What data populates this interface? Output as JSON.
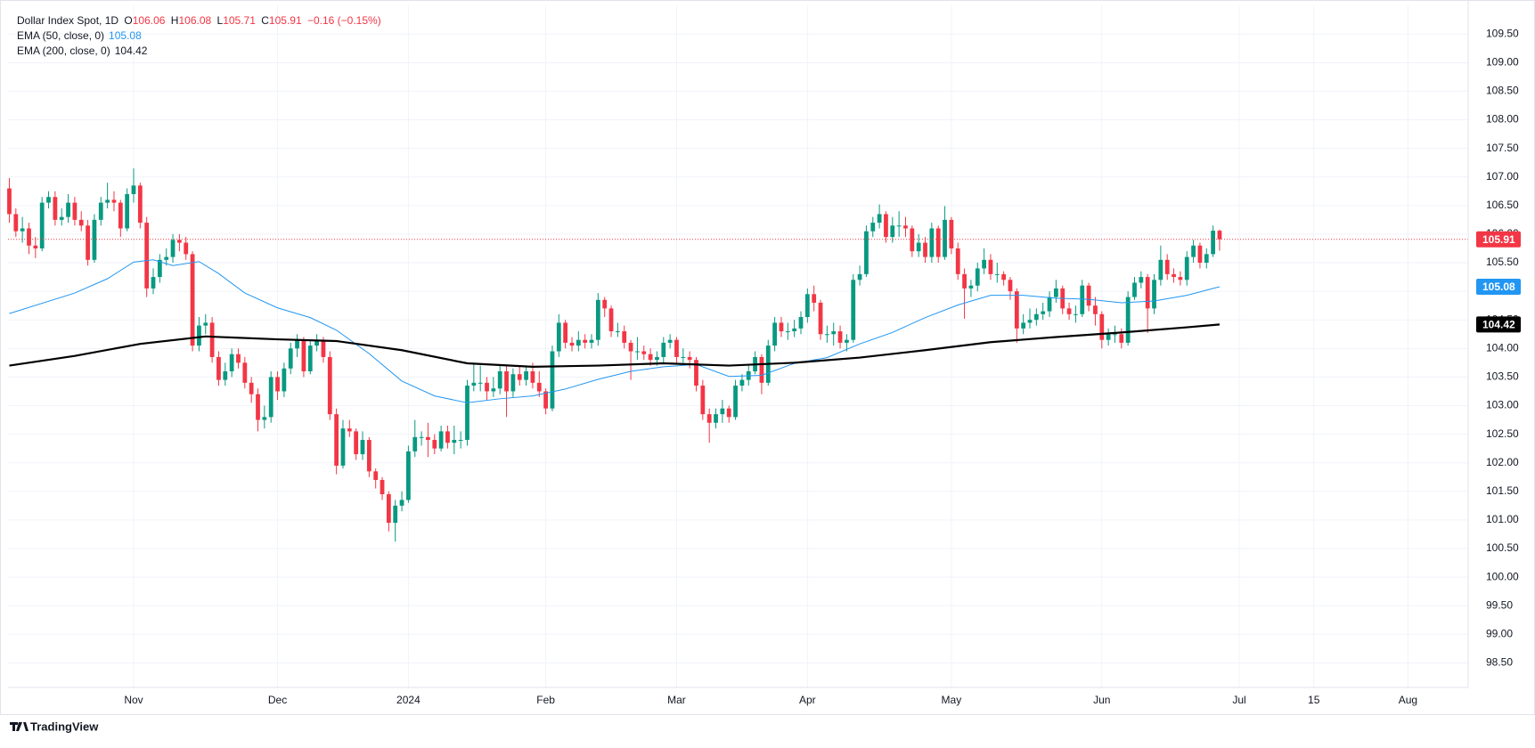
{
  "chart_data": {
    "type": "candlestick",
    "header": {
      "symbol": "Dollar Index Spot, 1D",
      "ohlc_labels": [
        "O",
        "H",
        "L",
        "C"
      ],
      "change": "−0.16 (−0.15%)"
    },
    "footer": "TradingView",
    "up_color": "#089981",
    "down_color": "#f23645",
    "xlim": [
      -0.2,
      223
    ],
    "ylim": [
      98.07,
      110.01
    ],
    "xticks": [
      {
        "value": 19,
        "label": "Nov"
      },
      {
        "value": 41,
        "label": "Dec"
      },
      {
        "value": 61,
        "label": "2024"
      },
      {
        "value": 82,
        "label": "Feb"
      },
      {
        "value": 102,
        "label": "Mar"
      },
      {
        "value": 122,
        "label": "Apr"
      },
      {
        "value": 144,
        "label": "May"
      },
      {
        "value": 167,
        "label": "Jun"
      },
      {
        "value": 188,
        "label": "Jul"
      },
      {
        "value": 199.4,
        "label": "15"
      },
      {
        "value": 213.8,
        "label": "Aug"
      }
    ],
    "yticks": [
      {
        "value": 98.5,
        "label": "98.50"
      },
      {
        "value": 99,
        "label": "99.00"
      },
      {
        "value": 99.5,
        "label": "99.50"
      },
      {
        "value": 100,
        "label": "100.00"
      },
      {
        "value": 100.5,
        "label": "100.50"
      },
      {
        "value": 101,
        "label": "101.00"
      },
      {
        "value": 101.5,
        "label": "101.50"
      },
      {
        "value": 102,
        "label": "102.00"
      },
      {
        "value": 102.5,
        "label": "102.50"
      },
      {
        "value": 103,
        "label": "103.00"
      },
      {
        "value": 103.5,
        "label": "103.50"
      },
      {
        "value": 104,
        "label": "104.00"
      },
      {
        "value": 104.5,
        "label": "104.50"
      },
      {
        "value": 105,
        "label": "105.00"
      },
      {
        "value": 105.5,
        "label": "105.50"
      },
      {
        "value": 106,
        "label": "106.00"
      },
      {
        "value": 106.5,
        "label": "106.50"
      },
      {
        "value": 107,
        "label": "107.00"
      },
      {
        "value": 107.5,
        "label": "107.50"
      },
      {
        "value": 108,
        "label": "108.00"
      },
      {
        "value": 108.5,
        "label": "108.50"
      },
      {
        "value": 109,
        "label": "109.00"
      },
      {
        "value": 109.5,
        "label": "109.50"
      }
    ],
    "grid": true,
    "candles": {
      "open": [
        106.8,
        106.35,
        106.05,
        106.1,
        105.8,
        105.75,
        106.55,
        106.65,
        106.25,
        106.3,
        106.55,
        106.25,
        106.15,
        105.55,
        106.25,
        106.55,
        106.6,
        106.55,
        106.1,
        106.7,
        106.85,
        106.2,
        105.05,
        105.25,
        105.55,
        105.6,
        105.9,
        105.85,
        105.65,
        104.05,
        104.4,
        104.45,
        103.85,
        103.45,
        103.6,
        103.9,
        103.75,
        103.4,
        103.2,
        102.75,
        102.8,
        103.5,
        103.25,
        103.65,
        104.0,
        104.15,
        103.6,
        104.05,
        104.15,
        103.85,
        102.85,
        101.95,
        102.6,
        102.55,
        102.15,
        102.4,
        101.85,
        101.7,
        101.45,
        100.95,
        101.25,
        101.35,
        102.2,
        102.45,
        102.45,
        102.4,
        102.25,
        102.55,
        102.35,
        102.4,
        102.4,
        103.35,
        103.4,
        103.4,
        103.25,
        103.3,
        103.6,
        103.25,
        103.55,
        103.45,
        103.6,
        103.4,
        103.25,
        102.95,
        103.95,
        104.45,
        104.1,
        104.05,
        104.15,
        104.1,
        104.15,
        104.85,
        104.7,
        104.3,
        104.3,
        104.1,
        103.95,
        103.95,
        103.9,
        103.8,
        103.85,
        104.1,
        104.15,
        103.85,
        103.85,
        103.8,
        103.35,
        102.85,
        102.7,
        102.85,
        102.95,
        102.8,
        103.35,
        103.45,
        103.6,
        103.85,
        103.4,
        104.05,
        104.45,
        104.3,
        104.3,
        104.35,
        104.55,
        104.95,
        104.8,
        104.25,
        104.25,
        104.3,
        104.1,
        104.15,
        105.2,
        105.3,
        106.05,
        106.2,
        106.35,
        105.95,
        106.15,
        106.15,
        106.1,
        105.7,
        105.85,
        105.6,
        106.1,
        105.6,
        106.25,
        105.75,
        105.3,
        105.05,
        105.1,
        105.4,
        105.55,
        105.3,
        105.3,
        105.2,
        105.0,
        104.35,
        104.45,
        104.5,
        104.6,
        104.65,
        104.9,
        105.05,
        104.7,
        104.6,
        104.6,
        105.1,
        104.75,
        104.6,
        104.15,
        104.25,
        104.25,
        104.1,
        104.9,
        105.15,
        105.25,
        104.7,
        105.2,
        105.55,
        105.3,
        105.25,
        105.2,
        105.6,
        105.8,
        105.5,
        105.65,
        106.06
      ],
      "high": [
        106.98,
        106.45,
        106.3,
        106.2,
        105.95,
        106.65,
        106.75,
        106.75,
        106.45,
        106.7,
        106.65,
        106.4,
        106.25,
        106.35,
        106.65,
        106.9,
        106.75,
        106.6,
        106.8,
        107.15,
        106.9,
        106.3,
        105.4,
        105.65,
        105.75,
        106.0,
        106.0,
        105.95,
        105.7,
        104.55,
        104.6,
        104.55,
        103.95,
        103.75,
        104.0,
        104.0,
        103.85,
        103.5,
        103.3,
        103.0,
        103.6,
        103.6,
        103.75,
        104.1,
        104.25,
        104.2,
        104.15,
        104.25,
        104.2,
        103.95,
        102.95,
        102.75,
        102.75,
        102.6,
        102.55,
        102.45,
        101.9,
        101.75,
        101.5,
        101.35,
        101.5,
        102.3,
        102.75,
        102.55,
        102.7,
        102.5,
        102.65,
        102.65,
        102.65,
        102.55,
        103.45,
        103.75,
        103.7,
        103.5,
        103.5,
        103.7,
        103.7,
        103.65,
        103.7,
        103.7,
        103.75,
        103.6,
        103.3,
        104.05,
        104.6,
        104.5,
        104.2,
        104.3,
        104.25,
        104.25,
        104.97,
        104.9,
        104.75,
        104.45,
        104.4,
        104.15,
        104.2,
        104.05,
        104.0,
        103.95,
        104.2,
        104.25,
        104.2,
        104.0,
        103.95,
        103.85,
        103.45,
        102.95,
        102.95,
        103.1,
        103.0,
        103.45,
        103.55,
        103.7,
        103.95,
        103.9,
        104.15,
        104.55,
        104.55,
        104.45,
        104.5,
        104.65,
        105.05,
        105.1,
        104.85,
        104.4,
        104.45,
        104.4,
        104.25,
        105.3,
        105.45,
        106.15,
        106.3,
        106.52,
        106.4,
        106.3,
        106.4,
        106.3,
        106.15,
        106.0,
        105.95,
        106.2,
        106.15,
        106.49,
        106.3,
        105.85,
        105.4,
        105.2,
        105.5,
        105.75,
        105.65,
        105.5,
        105.35,
        105.25,
        105.05,
        104.6,
        104.7,
        104.7,
        104.8,
        105.0,
        105.2,
        105.1,
        104.8,
        104.75,
        105.2,
        105.15,
        104.9,
        104.65,
        104.35,
        104.4,
        104.35,
        105.0,
        105.25,
        105.35,
        105.3,
        105.3,
        105.8,
        105.65,
        105.4,
        105.35,
        105.7,
        105.9,
        105.85,
        105.75,
        106.15,
        106.08
      ],
      "low": [
        106.2,
        105.95,
        105.85,
        105.65,
        105.58,
        105.7,
        106.45,
        106.15,
        106.15,
        106.2,
        106.15,
        106.05,
        105.45,
        105.5,
        106.15,
        106.45,
        106.4,
        105.95,
        106.05,
        106.55,
        106.1,
        104.9,
        104.95,
        105.15,
        105.45,
        105.5,
        105.7,
        105.55,
        103.95,
        103.95,
        104.25,
        103.75,
        103.35,
        103.35,
        103.5,
        103.65,
        103.3,
        103.05,
        102.55,
        102.6,
        102.7,
        103.1,
        103.15,
        103.55,
        103.85,
        103.5,
        103.55,
        103.95,
        103.75,
        102.75,
        101.8,
        101.9,
        102.45,
        102.05,
        102.05,
        101.75,
        101.55,
        101.35,
        100.8,
        100.62,
        101.15,
        101.3,
        102.1,
        102.3,
        102.1,
        102.15,
        102.2,
        102.25,
        102.15,
        102.25,
        102.3,
        103.25,
        103.25,
        103.1,
        103.15,
        103.2,
        102.8,
        103.15,
        103.35,
        103.35,
        103.3,
        103.15,
        102.85,
        102.9,
        103.85,
        104.0,
        103.95,
        103.95,
        104.0,
        104.0,
        104.05,
        104.55,
        104.2,
        104.2,
        104.0,
        103.45,
        103.8,
        103.8,
        103.7,
        103.7,
        103.75,
        104.0,
        103.75,
        103.75,
        103.65,
        103.25,
        102.75,
        102.35,
        102.6,
        102.7,
        102.7,
        102.75,
        103.25,
        103.35,
        103.55,
        103.2,
        103.35,
        103.95,
        104.2,
        104.15,
        104.2,
        104.25,
        104.45,
        104.65,
        104.15,
        104.1,
        104.05,
        104.0,
        103.95,
        104.1,
        105.1,
        105.25,
        105.95,
        106.1,
        105.85,
        105.85,
        105.95,
        105.95,
        105.6,
        105.6,
        105.5,
        105.5,
        105.5,
        105.55,
        105.65,
        105.2,
        104.52,
        104.9,
        105.0,
        105.3,
        105.2,
        105.15,
        105.1,
        104.85,
        104.1,
        104.25,
        104.35,
        104.4,
        104.5,
        104.55,
        104.8,
        104.6,
        104.5,
        104.45,
        104.55,
        104.65,
        104.4,
        104.0,
        104.05,
        104.1,
        104.0,
        104.05,
        104.85,
        105.05,
        104.27,
        104.6,
        105.1,
        105.2,
        105.15,
        105.1,
        105.1,
        105.5,
        105.4,
        105.4,
        105.6,
        105.71
      ],
      "close": [
        106.35,
        106.05,
        106.1,
        105.8,
        105.75,
        106.55,
        106.65,
        106.25,
        106.3,
        106.55,
        106.25,
        106.15,
        105.55,
        106.25,
        106.55,
        106.6,
        106.55,
        106.1,
        106.7,
        106.85,
        106.2,
        105.05,
        105.25,
        105.55,
        105.6,
        105.9,
        105.85,
        105.65,
        104.05,
        104.4,
        104.45,
        103.85,
        103.45,
        103.6,
        103.9,
        103.75,
        103.4,
        103.2,
        102.75,
        102.8,
        103.5,
        103.25,
        103.65,
        104.0,
        104.15,
        103.6,
        104.05,
        104.15,
        103.85,
        102.85,
        101.95,
        102.6,
        102.55,
        102.15,
        102.4,
        101.85,
        101.7,
        101.45,
        100.95,
        101.25,
        101.35,
        102.2,
        102.45,
        102.45,
        102.4,
        102.25,
        102.55,
        102.35,
        102.4,
        102.4,
        103.35,
        103.4,
        103.4,
        103.25,
        103.3,
        103.6,
        103.25,
        103.55,
        103.45,
        103.6,
        103.4,
        103.25,
        102.95,
        103.95,
        104.45,
        104.1,
        104.05,
        104.15,
        104.1,
        104.15,
        104.85,
        104.7,
        104.3,
        104.3,
        104.1,
        103.95,
        103.95,
        103.9,
        103.8,
        103.85,
        104.1,
        104.15,
        103.85,
        103.85,
        103.8,
        103.35,
        102.85,
        102.7,
        102.85,
        102.95,
        102.8,
        103.35,
        103.45,
        103.6,
        103.85,
        103.4,
        104.05,
        104.45,
        104.3,
        104.3,
        104.35,
        104.55,
        104.95,
        104.8,
        104.25,
        104.25,
        104.3,
        104.1,
        104.15,
        105.2,
        105.3,
        106.05,
        106.2,
        106.35,
        105.95,
        106.15,
        106.15,
        106.1,
        105.7,
        105.85,
        105.6,
        106.1,
        105.6,
        106.25,
        105.75,
        105.3,
        105.05,
        105.1,
        105.4,
        105.55,
        105.3,
        105.3,
        105.2,
        105.0,
        104.35,
        104.45,
        104.5,
        104.6,
        104.65,
        104.9,
        105.05,
        104.7,
        104.6,
        104.6,
        105.1,
        104.75,
        104.6,
        104.15,
        104.25,
        104.25,
        104.1,
        104.9,
        105.15,
        105.25,
        104.7,
        105.2,
        105.55,
        105.3,
        105.25,
        105.2,
        105.6,
        105.8,
        105.5,
        105.65,
        106.06,
        105.91
      ]
    },
    "lines": [
      {
        "name": "EMA (50, close, 0)",
        "color": "#2196f3",
        "width": 1,
        "x": [
          0,
          10,
          15,
          19,
          22,
          25,
          29,
          32,
          36,
          41,
          46,
          50,
          55,
          60,
          65,
          70,
          75,
          80,
          85,
          90,
          95,
          100,
          105,
          110,
          115,
          120,
          125,
          130,
          135,
          140,
          145,
          150,
          155,
          160,
          165,
          170,
          175,
          180,
          185
        ],
        "values": [
          104.61,
          104.97,
          105.22,
          105.51,
          105.55,
          105.45,
          105.52,
          105.31,
          104.97,
          104.71,
          104.54,
          104.32,
          103.91,
          103.43,
          103.17,
          103.05,
          103.12,
          103.17,
          103.29,
          103.46,
          103.6,
          103.68,
          103.72,
          103.51,
          103.53,
          103.74,
          103.84,
          104.08,
          104.28,
          104.54,
          104.76,
          104.93,
          104.93,
          104.88,
          104.86,
          104.8,
          104.83,
          104.93,
          105.08
        ]
      },
      {
        "name": "EMA (200, close, 0)",
        "color": "#000000",
        "width": 2.2,
        "x": [
          0,
          10,
          20,
          30,
          41,
          50,
          60,
          70,
          80,
          90,
          100,
          110,
          120,
          130,
          140,
          150,
          160,
          170,
          180,
          185
        ],
        "values": [
          103.7,
          103.87,
          104.08,
          104.21,
          104.16,
          104.13,
          103.97,
          103.74,
          103.68,
          103.7,
          103.74,
          103.7,
          103.75,
          103.84,
          103.97,
          104.11,
          104.2,
          104.28,
          104.37,
          104.42
        ]
      }
    ]
  }
}
